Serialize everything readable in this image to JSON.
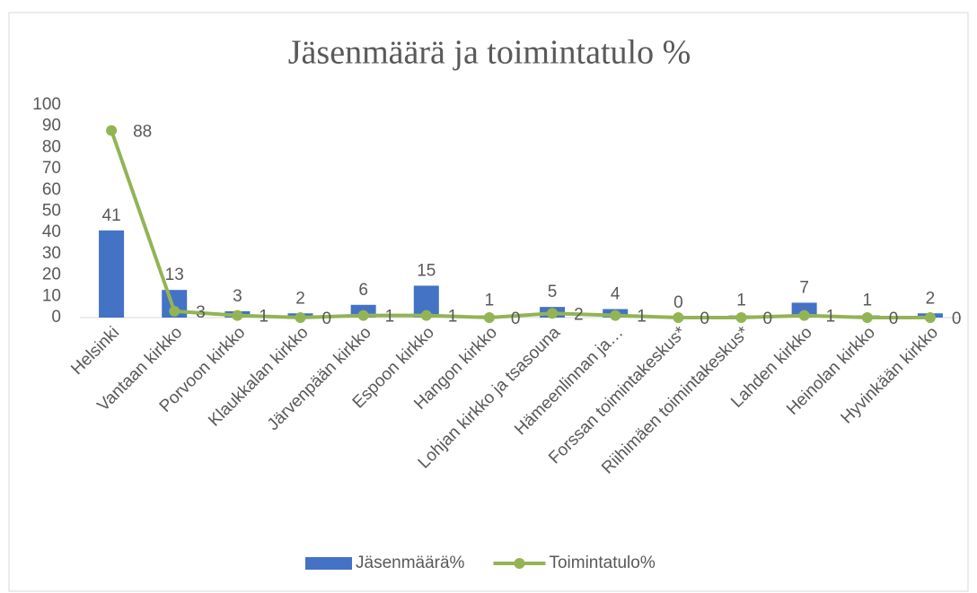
{
  "chart_data": {
    "type": "bar-line",
    "title": "Jäsenmäärä ja toimintatulo %",
    "categories": [
      "Helsinki",
      "Vantaan kirkko",
      "Porvoon kirkko",
      "Klaukkalan kirkko",
      "Järvenpään kirkko",
      "Espoon kirkko",
      "Hangon kirkko",
      "Lohjan kirkko ja tsasouna",
      "Hämeenlinnan ja…",
      "Forssan toimintakeskus*",
      "Riihimäen toimintakeskus*",
      "Lahden kirkko",
      "Heinolan kirkko",
      "Hyvinkään kirkko"
    ],
    "series": [
      {
        "name": "Jäsenmäärä%",
        "type": "bar",
        "color": "#4472c4",
        "values": [
          41,
          13,
          3,
          2,
          6,
          15,
          1,
          5,
          4,
          0,
          1,
          7,
          1,
          2
        ]
      },
      {
        "name": "Toimintatulo%",
        "type": "line",
        "color": "#92b455",
        "values": [
          88,
          3,
          1,
          0,
          1,
          1,
          0,
          2,
          1,
          0,
          0,
          1,
          0,
          0
        ]
      }
    ],
    "ylim": [
      0,
      100
    ],
    "yticks": [
      0,
      10,
      20,
      30,
      40,
      50,
      60,
      70,
      80,
      90,
      100
    ],
    "grid": false,
    "legend": "bottom"
  }
}
